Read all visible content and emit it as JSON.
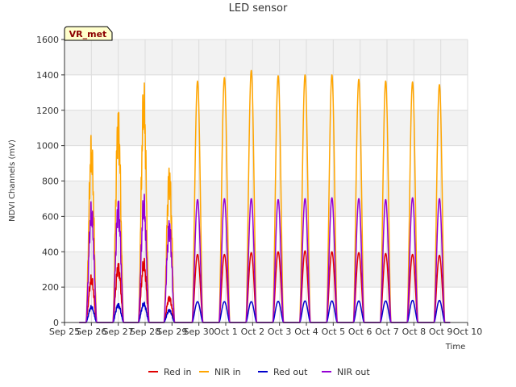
{
  "chart_data": {
    "type": "line",
    "title": "LED sensor",
    "xlabel": "Time",
    "ylabel": "NDVI Channels (mV)",
    "badge": "VR_met",
    "ylim": [
      0,
      1600
    ],
    "yticks": [
      0,
      200,
      400,
      600,
      800,
      1000,
      1200,
      1400,
      1600
    ],
    "xlim": [
      0,
      15
    ],
    "xticks": [
      {
        "x": 0,
        "label": "Sep 25"
      },
      {
        "x": 1,
        "label": "Sep 26"
      },
      {
        "x": 2,
        "label": "Sep 27"
      },
      {
        "x": 3,
        "label": "Sep 28"
      },
      {
        "x": 4,
        "label": "Sep 29"
      },
      {
        "x": 5,
        "label": "Sep 30"
      },
      {
        "x": 6,
        "label": "Oct 1"
      },
      {
        "x": 7,
        "label": "Oct 2"
      },
      {
        "x": 8,
        "label": "Oct 3"
      },
      {
        "x": 9,
        "label": "Oct 4"
      },
      {
        "x": 10,
        "label": "Oct 5"
      },
      {
        "x": 11,
        "label": "Oct 6"
      },
      {
        "x": 12,
        "label": "Oct 7"
      },
      {
        "x": 13,
        "label": "Oct 8"
      },
      {
        "x": 14,
        "label": "Oct 9"
      },
      {
        "x": 15,
        "label": "Oct 10"
      }
    ],
    "grid": true,
    "legend_position": "bottom",
    "day_peaks": [
      {
        "day": "Sep 26",
        "center": 1.0,
        "red_in": 280,
        "nir_in": 1100,
        "red_out": 100,
        "nir_out": 710,
        "noisy": true
      },
      {
        "day": "Sep 27",
        "center": 2.0,
        "red_in": 360,
        "nir_in": 1280,
        "red_out": 115,
        "nir_out": 740,
        "noisy": true
      },
      {
        "day": "Sep 28",
        "center": 2.95,
        "red_in": 380,
        "nir_in": 1420,
        "red_out": 120,
        "nir_out": 760,
        "noisy": true
      },
      {
        "day": "Sep 29",
        "center": 3.9,
        "red_in": 160,
        "nir_in": 940,
        "red_out": 80,
        "nir_out": 620,
        "noisy": true
      },
      {
        "day": "Sep 30",
        "center": 4.95,
        "red_in": 385,
        "nir_in": 1365,
        "red_out": 118,
        "nir_out": 695,
        "noisy": false
      },
      {
        "day": "Oct 1",
        "center": 5.95,
        "red_in": 385,
        "nir_in": 1385,
        "red_out": 118,
        "nir_out": 700,
        "noisy": false
      },
      {
        "day": "Oct 2",
        "center": 6.95,
        "red_in": 395,
        "nir_in": 1425,
        "red_out": 118,
        "nir_out": 700,
        "noisy": false
      },
      {
        "day": "Oct 3",
        "center": 7.95,
        "red_in": 400,
        "nir_in": 1395,
        "red_out": 120,
        "nir_out": 695,
        "noisy": false
      },
      {
        "day": "Oct 4",
        "center": 8.95,
        "red_in": 405,
        "nir_in": 1400,
        "red_out": 122,
        "nir_out": 700,
        "noisy": false
      },
      {
        "day": "Oct 5",
        "center": 9.95,
        "red_in": 400,
        "nir_in": 1400,
        "red_out": 122,
        "nir_out": 705,
        "noisy": false
      },
      {
        "day": "Oct 6",
        "center": 10.95,
        "red_in": 395,
        "nir_in": 1375,
        "red_out": 122,
        "nir_out": 700,
        "noisy": false
      },
      {
        "day": "Oct 7",
        "center": 11.95,
        "red_in": 390,
        "nir_in": 1365,
        "red_out": 122,
        "nir_out": 695,
        "noisy": false
      },
      {
        "day": "Oct 8",
        "center": 12.95,
        "red_in": 385,
        "nir_in": 1360,
        "red_out": 125,
        "nir_out": 705,
        "noisy": false
      },
      {
        "day": "Oct 9",
        "center": 13.95,
        "red_in": 380,
        "nir_in": 1345,
        "red_out": 125,
        "nir_out": 700,
        "noisy": false
      }
    ],
    "series": [
      {
        "name": "Red in",
        "key": "red_in",
        "color": "#e00000"
      },
      {
        "name": "NIR in",
        "key": "nir_in",
        "color": "#ffa500"
      },
      {
        "name": "Red out",
        "key": "red_out",
        "color": "#0000cc"
      },
      {
        "name": "NIR out",
        "key": "nir_out",
        "color": "#9400d3"
      }
    ]
  }
}
